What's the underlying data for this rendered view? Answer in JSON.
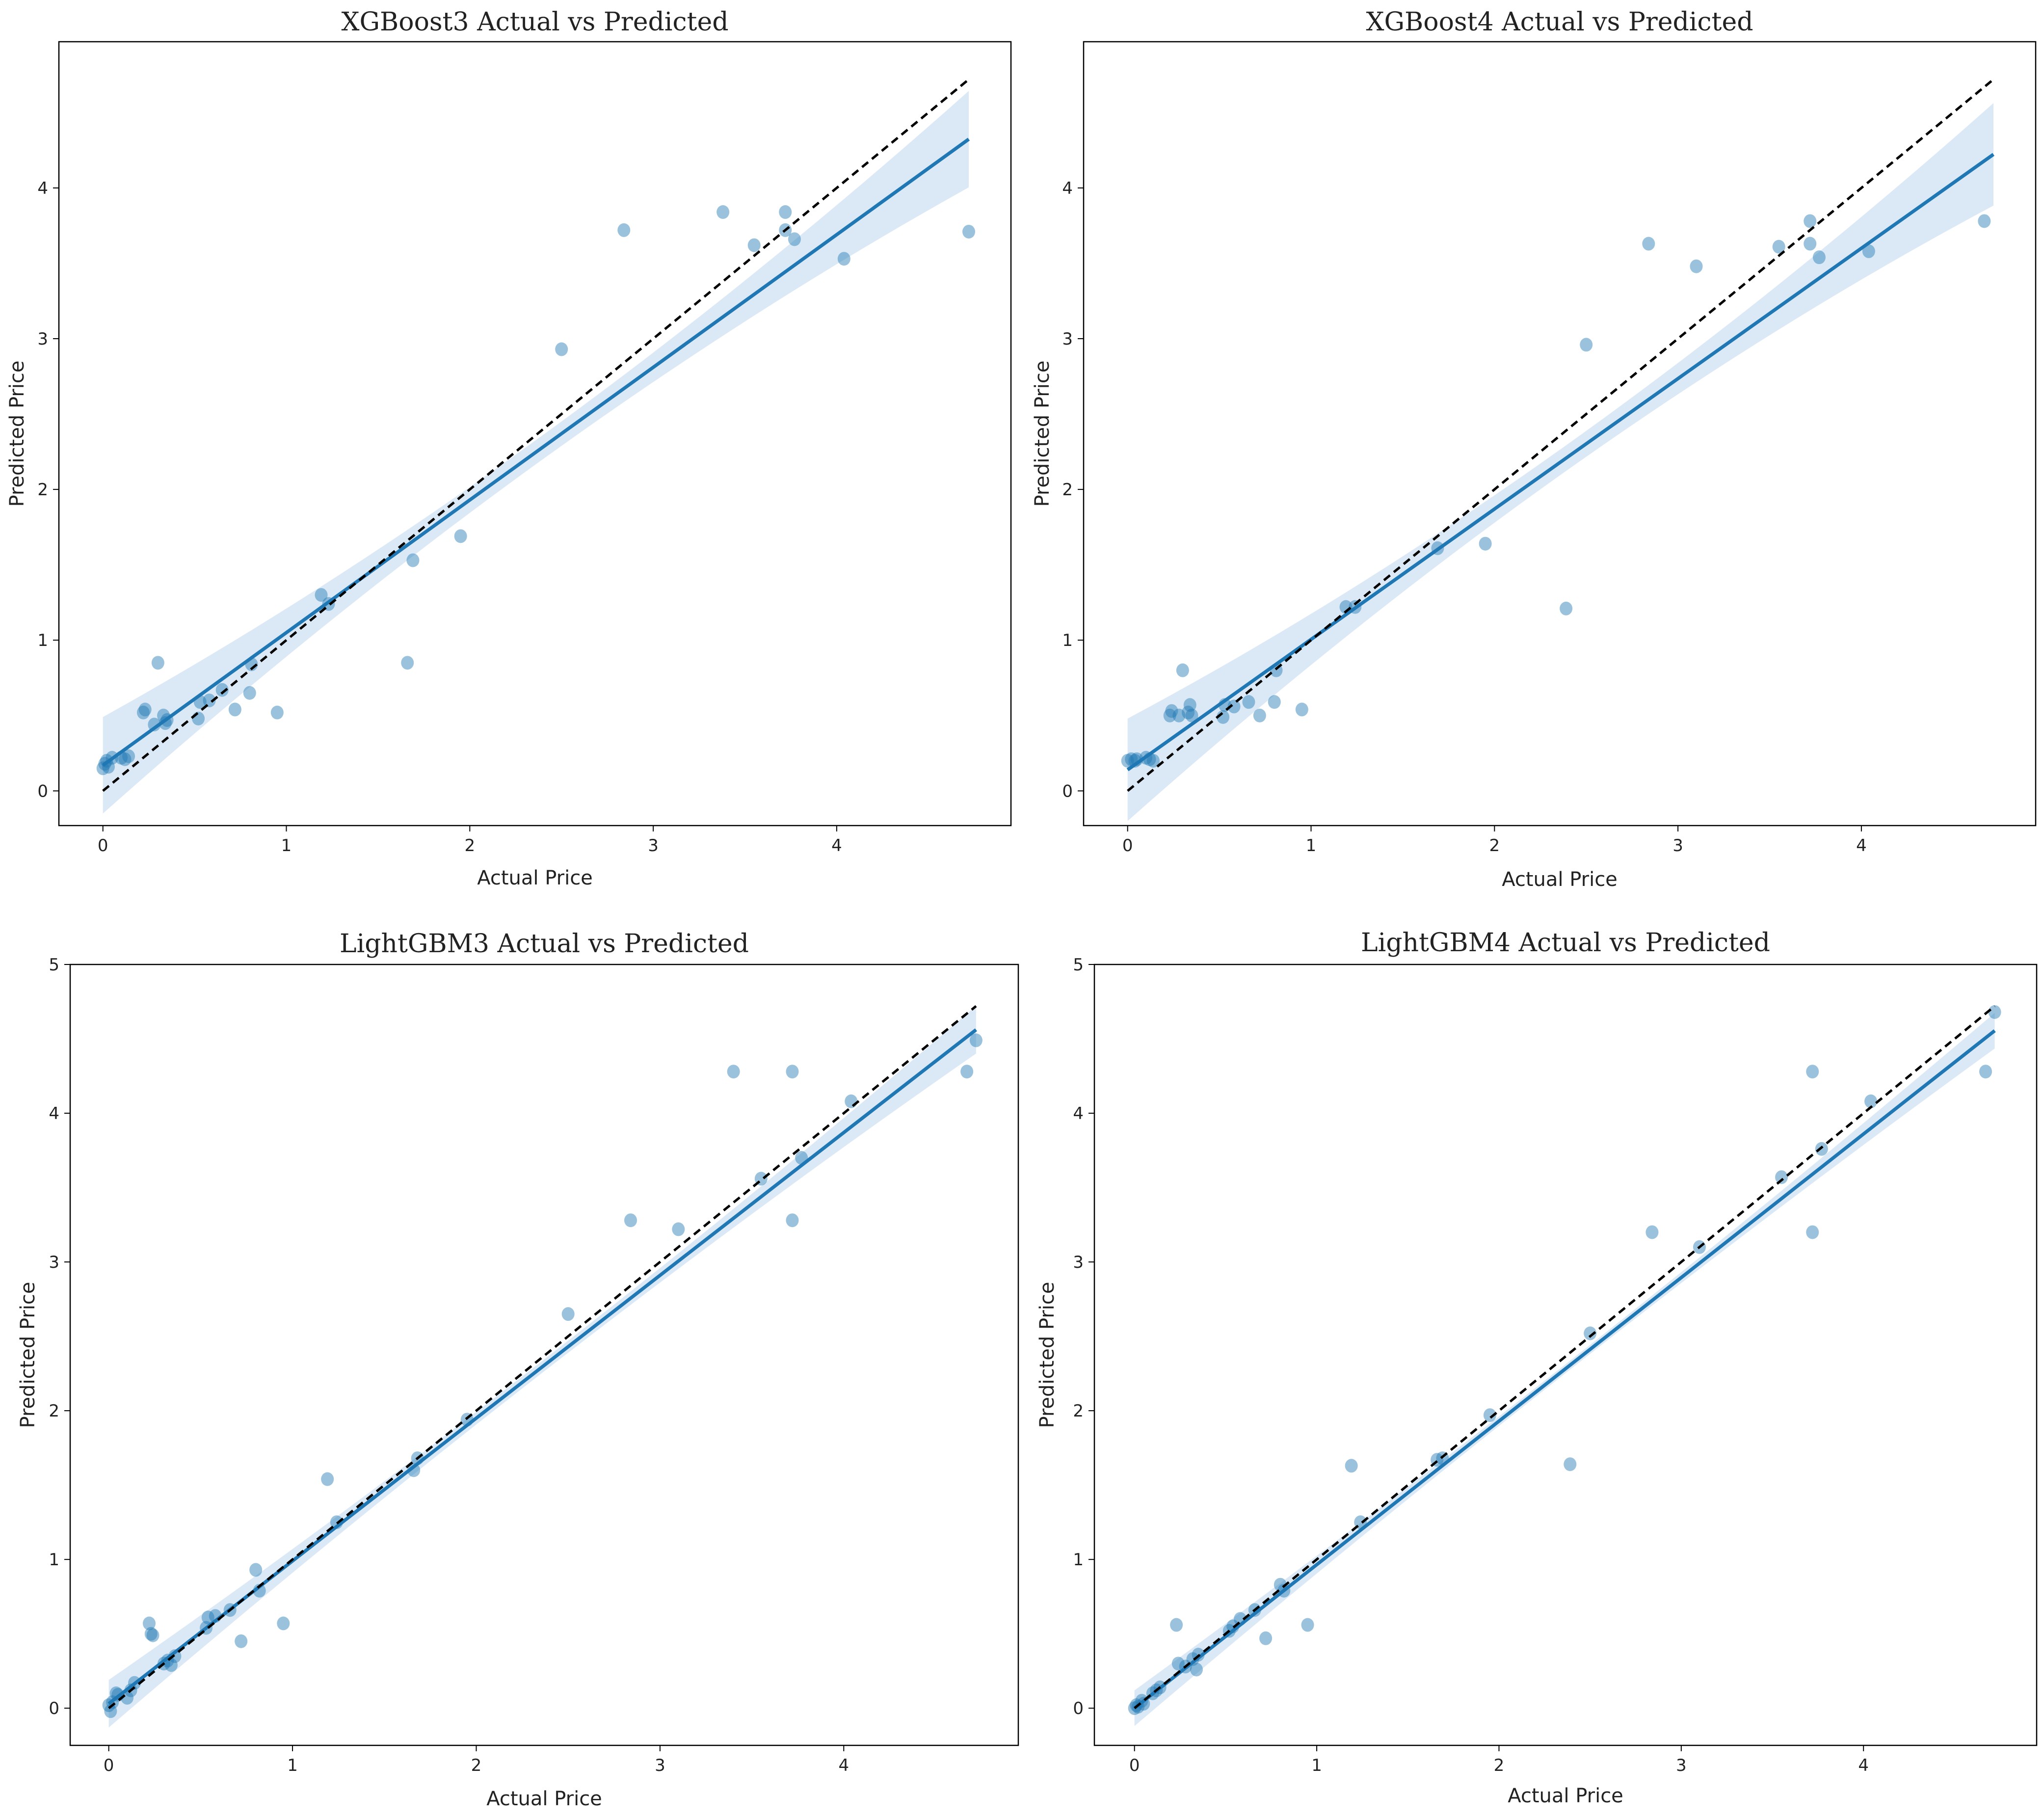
{
  "figure": {
    "panel_count": 4
  },
  "colors": {
    "regression": "#1f77b4",
    "point": "#1f77b4",
    "ci_band": "#cfe2f3",
    "identity": "#000000",
    "axes": "#000000"
  },
  "chart_data": [
    {
      "type": "scatter",
      "title": "XGBoost3 Actual vs Predicted",
      "xlabel": "Actual Price",
      "ylabel": "Predicted Price",
      "xlim": [
        -0.24,
        4.95
      ],
      "ylim": [
        -0.23,
        4.97
      ],
      "xticks": [
        0,
        1,
        2,
        3,
        4
      ],
      "yticks": [
        0,
        1,
        2,
        3,
        4
      ],
      "regression": {
        "slope": 0.88,
        "intercept": 0.17,
        "x_range": [
          0,
          4.72
        ],
        "ci_halfwidth_at_max": 0.32
      },
      "identity_line": [
        [
          0,
          0
        ],
        [
          4.72,
          4.72
        ]
      ],
      "points": [
        [
          0.0,
          0.15
        ],
        [
          0.01,
          0.18
        ],
        [
          0.02,
          0.2
        ],
        [
          0.03,
          0.16
        ],
        [
          0.05,
          0.22
        ],
        [
          0.1,
          0.22
        ],
        [
          0.12,
          0.21
        ],
        [
          0.14,
          0.23
        ],
        [
          0.22,
          0.52
        ],
        [
          0.23,
          0.54
        ],
        [
          0.28,
          0.44
        ],
        [
          0.3,
          0.85
        ],
        [
          0.33,
          0.5
        ],
        [
          0.34,
          0.45
        ],
        [
          0.35,
          0.47
        ],
        [
          0.52,
          0.48
        ],
        [
          0.53,
          0.59
        ],
        [
          0.58,
          0.6
        ],
        [
          0.65,
          0.67
        ],
        [
          0.72,
          0.54
        ],
        [
          0.8,
          0.65
        ],
        [
          0.81,
          0.84
        ],
        [
          0.95,
          0.52
        ],
        [
          1.19,
          1.3
        ],
        [
          1.23,
          1.24
        ],
        [
          1.66,
          0.85
        ],
        [
          1.69,
          1.53
        ],
        [
          1.95,
          1.69
        ],
        [
          2.5,
          2.93
        ],
        [
          2.84,
          3.72
        ],
        [
          3.38,
          3.84
        ],
        [
          3.55,
          3.62
        ],
        [
          3.72,
          3.84
        ],
        [
          3.72,
          3.72
        ],
        [
          3.77,
          3.66
        ],
        [
          4.04,
          3.53
        ],
        [
          4.72,
          3.71
        ]
      ]
    },
    {
      "type": "scatter",
      "title": "XGBoost4  Actual vs Predicted",
      "xlabel": "Actual Price",
      "ylabel": "Predicted Price",
      "xlim": [
        -0.24,
        4.95
      ],
      "ylim": [
        -0.23,
        4.97
      ],
      "xticks": [
        0,
        1,
        2,
        3,
        4
      ],
      "yticks": [
        0,
        1,
        2,
        3,
        4
      ],
      "regression": {
        "slope": 0.865,
        "intercept": 0.14,
        "x_range": [
          0,
          4.72
        ],
        "ci_halfwidth_at_max": 0.34
      },
      "identity_line": [
        [
          0,
          0
        ],
        [
          4.72,
          4.72
        ]
      ],
      "points": [
        [
          0.0,
          0.2
        ],
        [
          0.02,
          0.21
        ],
        [
          0.04,
          0.2
        ],
        [
          0.05,
          0.21
        ],
        [
          0.1,
          0.22
        ],
        [
          0.12,
          0.21
        ],
        [
          0.14,
          0.2
        ],
        [
          0.23,
          0.5
        ],
        [
          0.24,
          0.53
        ],
        [
          0.28,
          0.5
        ],
        [
          0.3,
          0.8
        ],
        [
          0.33,
          0.52
        ],
        [
          0.34,
          0.57
        ],
        [
          0.35,
          0.5
        ],
        [
          0.52,
          0.49
        ],
        [
          0.53,
          0.57
        ],
        [
          0.58,
          0.56
        ],
        [
          0.66,
          0.59
        ],
        [
          0.72,
          0.5
        ],
        [
          0.8,
          0.59
        ],
        [
          0.81,
          0.8
        ],
        [
          0.95,
          0.54
        ],
        [
          1.19,
          1.22
        ],
        [
          1.24,
          1.22
        ],
        [
          1.69,
          1.61
        ],
        [
          1.95,
          1.64
        ],
        [
          2.39,
          1.21
        ],
        [
          2.5,
          2.96
        ],
        [
          2.84,
          3.63
        ],
        [
          3.1,
          3.48
        ],
        [
          3.55,
          3.61
        ],
        [
          3.72,
          3.78
        ],
        [
          3.72,
          3.63
        ],
        [
          3.77,
          3.54
        ],
        [
          4.04,
          3.58
        ],
        [
          4.67,
          3.78
        ]
      ]
    },
    {
      "type": "scatter",
      "title": "LightGBM3 Actual vs Predicted",
      "xlabel": "Actual Price",
      "ylabel": "Predicted Price",
      "xlim": [
        -0.21,
        4.95
      ],
      "ylim": [
        -0.25,
        5.0
      ],
      "xticks": [
        0,
        1,
        2,
        3,
        4
      ],
      "yticks": [
        0,
        1,
        2,
        3,
        4,
        5
      ],
      "regression": {
        "slope": 0.96,
        "intercept": 0.03,
        "x_range": [
          0,
          4.72
        ],
        "ci_halfwidth_at_max": 0.16
      },
      "identity_line": [
        [
          0,
          0
        ],
        [
          4.72,
          4.72
        ]
      ],
      "points": [
        [
          0.0,
          0.02
        ],
        [
          0.01,
          -0.02
        ],
        [
          0.02,
          0.04
        ],
        [
          0.04,
          0.1
        ],
        [
          0.05,
          0.09
        ],
        [
          0.1,
          0.07
        ],
        [
          0.12,
          0.12
        ],
        [
          0.14,
          0.17
        ],
        [
          0.22,
          0.57
        ],
        [
          0.23,
          0.5
        ],
        [
          0.24,
          0.49
        ],
        [
          0.3,
          0.3
        ],
        [
          0.32,
          0.32
        ],
        [
          0.34,
          0.29
        ],
        [
          0.36,
          0.35
        ],
        [
          0.53,
          0.54
        ],
        [
          0.54,
          0.61
        ],
        [
          0.58,
          0.62
        ],
        [
          0.66,
          0.66
        ],
        [
          0.72,
          0.45
        ],
        [
          0.8,
          0.93
        ],
        [
          0.82,
          0.79
        ],
        [
          0.95,
          0.57
        ],
        [
          1.19,
          1.54
        ],
        [
          1.24,
          1.25
        ],
        [
          1.66,
          1.6
        ],
        [
          1.68,
          1.68
        ],
        [
          1.95,
          1.94
        ],
        [
          2.5,
          2.65
        ],
        [
          2.84,
          3.28
        ],
        [
          3.1,
          3.22
        ],
        [
          3.4,
          4.28
        ],
        [
          3.55,
          3.56
        ],
        [
          3.72,
          4.28
        ],
        [
          3.72,
          3.28
        ],
        [
          3.77,
          3.7
        ],
        [
          4.04,
          4.08
        ],
        [
          4.67,
          4.28
        ],
        [
          4.72,
          4.49
        ]
      ]
    },
    {
      "type": "scatter",
      "title": "LightGBM4 Actual vs Predicted",
      "xlabel": "Actual Price",
      "ylabel": "Predicted Price",
      "xlim": [
        -0.22,
        4.95
      ],
      "ylim": [
        -0.25,
        5.0
      ],
      "xticks": [
        0,
        1,
        2,
        3,
        4
      ],
      "yticks": [
        0,
        1,
        2,
        3,
        4,
        5
      ],
      "regression": {
        "slope": 0.965,
        "intercept": 0.0,
        "x_range": [
          0,
          4.72
        ],
        "ci_halfwidth_at_max": 0.12
      },
      "identity_line": [
        [
          0,
          0
        ],
        [
          4.72,
          4.72
        ]
      ],
      "points": [
        [
          0.0,
          0.0
        ],
        [
          0.01,
          0.02
        ],
        [
          0.02,
          0.01
        ],
        [
          0.04,
          0.05
        ],
        [
          0.05,
          0.03
        ],
        [
          0.1,
          0.1
        ],
        [
          0.12,
          0.12
        ],
        [
          0.14,
          0.14
        ],
        [
          0.23,
          0.56
        ],
        [
          0.24,
          0.3
        ],
        [
          0.28,
          0.28
        ],
        [
          0.32,
          0.33
        ],
        [
          0.34,
          0.26
        ],
        [
          0.35,
          0.36
        ],
        [
          0.52,
          0.52
        ],
        [
          0.54,
          0.55
        ],
        [
          0.58,
          0.6
        ],
        [
          0.66,
          0.66
        ],
        [
          0.72,
          0.47
        ],
        [
          0.8,
          0.83
        ],
        [
          0.82,
          0.79
        ],
        [
          0.95,
          0.56
        ],
        [
          1.19,
          1.63
        ],
        [
          1.24,
          1.25
        ],
        [
          1.66,
          1.67
        ],
        [
          1.69,
          1.68
        ],
        [
          1.95,
          1.97
        ],
        [
          2.39,
          1.64
        ],
        [
          2.5,
          2.52
        ],
        [
          2.84,
          3.2
        ],
        [
          3.1,
          3.1
        ],
        [
          3.55,
          3.57
        ],
        [
          3.72,
          4.28
        ],
        [
          3.72,
          3.2
        ],
        [
          3.77,
          3.76
        ],
        [
          4.04,
          4.08
        ],
        [
          4.67,
          4.28
        ],
        [
          4.72,
          4.68
        ]
      ]
    }
  ]
}
